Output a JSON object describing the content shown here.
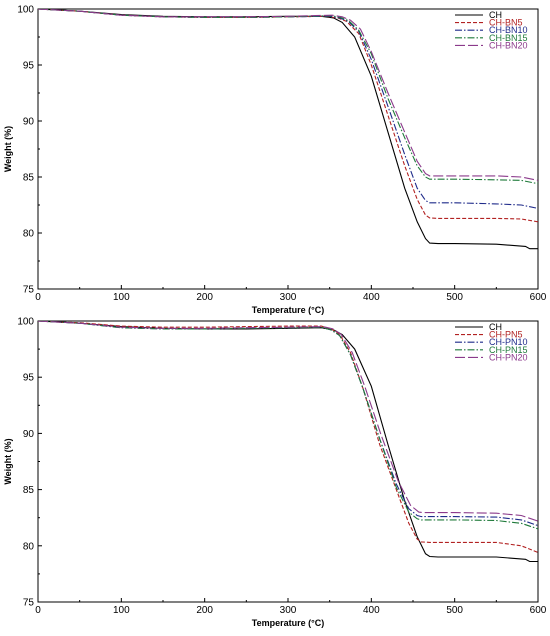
{
  "chart_data": [
    {
      "type": "line",
      "title": "",
      "xlabel": "Temperature (°C)",
      "ylabel": "Weight (%)",
      "xlim": [
        0,
        600
      ],
      "ylim": [
        75,
        100
      ],
      "xticks": [
        "0",
        "100",
        "200",
        "300",
        "400",
        "500",
        "600"
      ],
      "yticks": [
        "75",
        "80",
        "85",
        "90",
        "95",
        "100"
      ],
      "grid": false,
      "legend": "top-right",
      "series": [
        {
          "name": "CH",
          "color": "#000000",
          "dash": "",
          "x": [
            0,
            25,
            50,
            100,
            150,
            200,
            250,
            300,
            340,
            355,
            365,
            380,
            400,
            420,
            440,
            455,
            465,
            470,
            480,
            500,
            550,
            585,
            590,
            600
          ],
          "y": [
            100,
            99.9,
            99.8,
            99.5,
            99.35,
            99.3,
            99.3,
            99.35,
            99.35,
            99.2,
            98.8,
            97.5,
            94.0,
            89.0,
            84.0,
            81.0,
            79.5,
            79.1,
            79.05,
            79.05,
            79.0,
            78.8,
            78.6,
            78.6
          ]
        },
        {
          "name": "CH-BN5",
          "color": "#b22222",
          "dash": "4,2",
          "x": [
            0,
            25,
            50,
            100,
            150,
            200,
            250,
            300,
            345,
            360,
            370,
            385,
            400,
            420,
            440,
            455,
            465,
            470,
            480,
            500,
            550,
            580,
            600
          ],
          "y": [
            100,
            99.9,
            99.8,
            99.45,
            99.3,
            99.25,
            99.25,
            99.3,
            99.35,
            99.2,
            98.9,
            97.8,
            95.0,
            90.5,
            86.0,
            83.0,
            81.6,
            81.35,
            81.3,
            81.3,
            81.3,
            81.25,
            81.0
          ]
        },
        {
          "name": "CH-BN10",
          "color": "#1f2b8a",
          "dash": "7,2,1.5,2",
          "x": [
            0,
            25,
            50,
            100,
            150,
            200,
            250,
            300,
            350,
            362,
            372,
            385,
            400,
            420,
            440,
            455,
            465,
            470,
            480,
            500,
            550,
            580,
            600
          ],
          "y": [
            100,
            99.9,
            99.8,
            99.45,
            99.3,
            99.25,
            99.25,
            99.3,
            99.35,
            99.2,
            98.9,
            98.0,
            95.5,
            91.3,
            87.0,
            84.0,
            82.9,
            82.7,
            82.7,
            82.7,
            82.6,
            82.5,
            82.2
          ]
        },
        {
          "name": "CH-BN15",
          "color": "#1f7a3a",
          "dash": "7,2,1.5,2",
          "x": [
            0,
            25,
            50,
            100,
            150,
            200,
            250,
            300,
            352,
            363,
            373,
            385,
            400,
            420,
            440,
            455,
            465,
            470,
            480,
            500,
            550,
            580,
            600
          ],
          "y": [
            100,
            99.9,
            99.8,
            99.45,
            99.3,
            99.25,
            99.25,
            99.3,
            99.4,
            99.25,
            98.95,
            98.1,
            96.0,
            92.0,
            88.5,
            86.0,
            85.0,
            84.8,
            84.8,
            84.8,
            84.75,
            84.7,
            84.4
          ]
        },
        {
          "name": "CH-BN20",
          "color": "#8b3a8b",
          "dash": "10,3",
          "x": [
            0,
            25,
            50,
            100,
            150,
            200,
            250,
            300,
            353,
            365,
            375,
            387,
            400,
            420,
            440,
            455,
            465,
            470,
            480,
            500,
            550,
            580,
            600
          ],
          "y": [
            100,
            99.9,
            99.8,
            99.45,
            99.3,
            99.3,
            99.3,
            99.35,
            99.45,
            99.3,
            99.0,
            98.2,
            96.2,
            92.5,
            89.0,
            86.4,
            85.3,
            85.1,
            85.1,
            85.1,
            85.1,
            85.0,
            84.7
          ]
        }
      ]
    },
    {
      "type": "line",
      "title": "",
      "xlabel": "Temperature (°C)",
      "ylabel": "Weight (%)",
      "xlim": [
        0,
        600
      ],
      "ylim": [
        75,
        100
      ],
      "xticks": [
        "0",
        "100",
        "200",
        "300",
        "400",
        "500",
        "600"
      ],
      "yticks": [
        "75",
        "80",
        "85",
        "90",
        "95",
        "100"
      ],
      "grid": false,
      "legend": "top-right",
      "series": [
        {
          "name": "CH",
          "color": "#000000",
          "dash": "",
          "x": [
            0,
            25,
            50,
            100,
            150,
            200,
            250,
            300,
            340,
            355,
            365,
            380,
            400,
            420,
            440,
            455,
            465,
            470,
            480,
            500,
            550,
            585,
            590,
            600
          ],
          "y": [
            100,
            99.9,
            99.8,
            99.5,
            99.35,
            99.3,
            99.3,
            99.35,
            99.4,
            99.2,
            98.8,
            97.5,
            94.2,
            89.0,
            84.0,
            80.8,
            79.3,
            79.05,
            79.0,
            79.0,
            79.0,
            78.8,
            78.6,
            78.6
          ]
        },
        {
          "name": "CH-PN5",
          "color": "#b22222",
          "dash": "4,2",
          "x": [
            0,
            25,
            50,
            100,
            150,
            200,
            250,
            300,
            340,
            352,
            362,
            375,
            390,
            410,
            430,
            445,
            455,
            460,
            470,
            500,
            550,
            580,
            600
          ],
          "y": [
            100,
            99.9,
            99.85,
            99.55,
            99.45,
            99.45,
            99.5,
            99.55,
            99.55,
            99.3,
            98.8,
            97.2,
            94.0,
            89.0,
            85.0,
            82.0,
            80.6,
            80.35,
            80.3,
            80.3,
            80.3,
            80.0,
            79.4
          ]
        },
        {
          "name": "CH-PN10",
          "color": "#1f2b8a",
          "dash": "7,2,1.5,2",
          "x": [
            0,
            25,
            50,
            100,
            150,
            200,
            250,
            300,
            340,
            352,
            362,
            375,
            390,
            410,
            430,
            445,
            455,
            460,
            470,
            500,
            550,
            580,
            600
          ],
          "y": [
            100,
            99.9,
            99.8,
            99.4,
            99.3,
            99.3,
            99.35,
            99.4,
            99.45,
            99.2,
            98.7,
            97.0,
            94.0,
            89.5,
            85.5,
            83.3,
            82.7,
            82.6,
            82.6,
            82.6,
            82.55,
            82.3,
            81.8
          ]
        },
        {
          "name": "CH-PN15",
          "color": "#1f7a3a",
          "dash": "7,2,1.5,2",
          "x": [
            0,
            25,
            50,
            100,
            150,
            200,
            250,
            300,
            340,
            352,
            362,
            375,
            390,
            410,
            430,
            445,
            455,
            460,
            470,
            500,
            550,
            580,
            600
          ],
          "y": [
            100,
            99.9,
            99.8,
            99.4,
            99.3,
            99.3,
            99.35,
            99.4,
            99.45,
            99.2,
            98.7,
            97.0,
            94.0,
            89.5,
            85.2,
            83.0,
            82.4,
            82.3,
            82.3,
            82.3,
            82.25,
            82.0,
            81.5
          ]
        },
        {
          "name": "CH-PN20",
          "color": "#8b3a8b",
          "dash": "10,3",
          "x": [
            0,
            25,
            50,
            100,
            150,
            200,
            250,
            300,
            342,
            354,
            364,
            377,
            392,
            412,
            432,
            447,
            457,
            462,
            472,
            500,
            550,
            580,
            600
          ],
          "y": [
            100,
            99.9,
            99.8,
            99.45,
            99.35,
            99.35,
            99.4,
            99.45,
            99.5,
            99.3,
            98.8,
            97.2,
            94.2,
            89.8,
            85.8,
            83.6,
            83.0,
            82.95,
            82.95,
            82.95,
            82.9,
            82.7,
            82.2
          ]
        }
      ]
    }
  ]
}
